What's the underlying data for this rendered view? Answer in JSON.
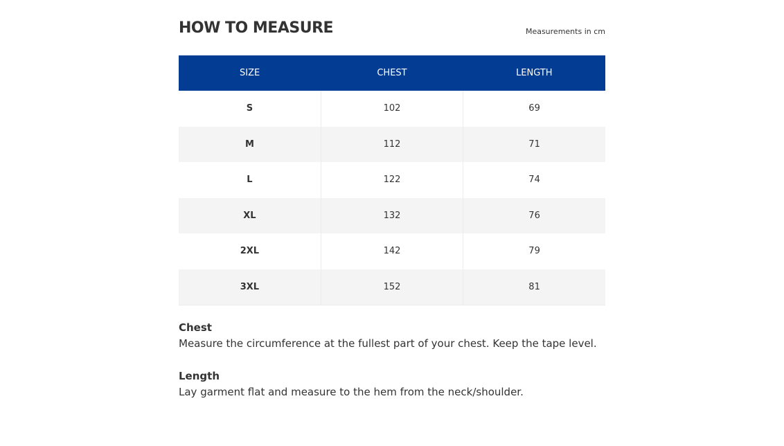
{
  "header": {
    "title": "HOW TO MEASURE",
    "units": "Measurements in cm"
  },
  "colors": {
    "header_bg": "#033d93",
    "alt_row": "#f4f4f4"
  },
  "table": {
    "columns": [
      "SIZE",
      "CHEST",
      "LENGTH"
    ],
    "rows": [
      [
        "S",
        "102",
        "69"
      ],
      [
        "M",
        "112",
        "71"
      ],
      [
        "L",
        "122",
        "74"
      ],
      [
        "XL",
        "132",
        "76"
      ],
      [
        "2XL",
        "142",
        "79"
      ],
      [
        "3XL",
        "152",
        "81"
      ]
    ]
  },
  "notes": [
    {
      "heading": "Chest",
      "text": "Measure the circumference at the fullest part of your chest. Keep the tape level."
    },
    {
      "heading": "Length",
      "text": "Lay garment flat and measure to the hem from the neck/shoulder."
    }
  ]
}
